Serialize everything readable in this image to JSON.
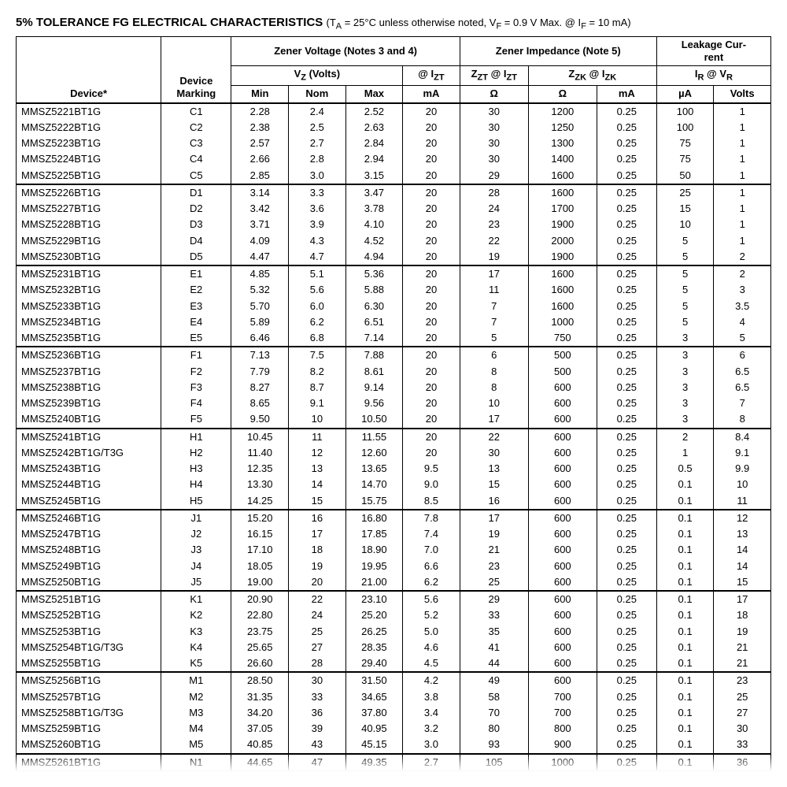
{
  "title_main": "5% TOLERANCE FG ELECTRICAL CHARACTERISTICS",
  "title_cond": "(Tᴀ = 25°C unless otherwise noted, Vᴝ = 0.9 V Max. @ Iᴝ = 10 mA)",
  "headers": {
    "device": "Device*",
    "marking": "Device Marking",
    "zener_voltage": "Zener Voltage",
    "zener_voltage_notes": " (Notes 3 and 4)",
    "zener_impedance": "Zener Impedance",
    "zener_impedance_notes": " (Note 5)",
    "leakage": "Leakage Cur-rent",
    "vz": "V",
    "vz_sub": "Z",
    "vz_unit": " (Volts)",
    "at_izt": "@ I",
    "at_izt_sub": "ZT",
    "zzt": "Z",
    "zzt_sub": "ZT",
    "zzt_at": " @ I",
    "zzt_at_sub": "ZT",
    "zzk": "Z",
    "zzk_sub": "ZK",
    "zzk_at": " @ I",
    "zzk_at_sub": "ZK",
    "ir": "I",
    "ir_sub": "R",
    "ir_at": " @ V",
    "ir_at_sub": "R",
    "min": "Min",
    "nom": "Nom",
    "max": "Max",
    "ma": "mA",
    "ohm": "Ω",
    "ua": "µA",
    "volts": "Volts"
  },
  "groups": [
    [
      [
        "MMSZ5221BT1G",
        "C1",
        "2.28",
        "2.4",
        "2.52",
        "20",
        "30",
        "1200",
        "0.25",
        "100",
        "1"
      ],
      [
        "MMSZ5222BT1G",
        "C2",
        "2.38",
        "2.5",
        "2.63",
        "20",
        "30",
        "1250",
        "0.25",
        "100",
        "1"
      ],
      [
        "MMSZ5223BT1G",
        "C3",
        "2.57",
        "2.7",
        "2.84",
        "20",
        "30",
        "1300",
        "0.25",
        "75",
        "1"
      ],
      [
        "MMSZ5224BT1G",
        "C4",
        "2.66",
        "2.8",
        "2.94",
        "20",
        "30",
        "1400",
        "0.25",
        "75",
        "1"
      ],
      [
        "MMSZ5225BT1G",
        "C5",
        "2.85",
        "3.0",
        "3.15",
        "20",
        "29",
        "1600",
        "0.25",
        "50",
        "1"
      ]
    ],
    [
      [
        "MMSZ5226BT1G",
        "D1",
        "3.14",
        "3.3",
        "3.47",
        "20",
        "28",
        "1600",
        "0.25",
        "25",
        "1"
      ],
      [
        "MMSZ5227BT1G",
        "D2",
        "3.42",
        "3.6",
        "3.78",
        "20",
        "24",
        "1700",
        "0.25",
        "15",
        "1"
      ],
      [
        "MMSZ5228BT1G",
        "D3",
        "3.71",
        "3.9",
        "4.10",
        "20",
        "23",
        "1900",
        "0.25",
        "10",
        "1"
      ],
      [
        "MMSZ5229BT1G",
        "D4",
        "4.09",
        "4.3",
        "4.52",
        "20",
        "22",
        "2000",
        "0.25",
        "5",
        "1"
      ],
      [
        "MMSZ5230BT1G",
        "D5",
        "4.47",
        "4.7",
        "4.94",
        "20",
        "19",
        "1900",
        "0.25",
        "5",
        "2"
      ]
    ],
    [
      [
        "MMSZ5231BT1G",
        "E1",
        "4.85",
        "5.1",
        "5.36",
        "20",
        "17",
        "1600",
        "0.25",
        "5",
        "2"
      ],
      [
        "MMSZ5232BT1G",
        "E2",
        "5.32",
        "5.6",
        "5.88",
        "20",
        "11",
        "1600",
        "0.25",
        "5",
        "3"
      ],
      [
        "MMSZ5233BT1G",
        "E3",
        "5.70",
        "6.0",
        "6.30",
        "20",
        "7",
        "1600",
        "0.25",
        "5",
        "3.5"
      ],
      [
        "MMSZ5234BT1G",
        "E4",
        "5.89",
        "6.2",
        "6.51",
        "20",
        "7",
        "1000",
        "0.25",
        "5",
        "4"
      ],
      [
        "MMSZ5235BT1G",
        "E5",
        "6.46",
        "6.8",
        "7.14",
        "20",
        "5",
        "750",
        "0.25",
        "3",
        "5"
      ]
    ],
    [
      [
        "MMSZ5236BT1G",
        "F1",
        "7.13",
        "7.5",
        "7.88",
        "20",
        "6",
        "500",
        "0.25",
        "3",
        "6"
      ],
      [
        "MMSZ5237BT1G",
        "F2",
        "7.79",
        "8.2",
        "8.61",
        "20",
        "8",
        "500",
        "0.25",
        "3",
        "6.5"
      ],
      [
        "MMSZ5238BT1G",
        "F3",
        "8.27",
        "8.7",
        "9.14",
        "20",
        "8",
        "600",
        "0.25",
        "3",
        "6.5"
      ],
      [
        "MMSZ5239BT1G",
        "F4",
        "8.65",
        "9.1",
        "9.56",
        "20",
        "10",
        "600",
        "0.25",
        "3",
        "7"
      ],
      [
        "MMSZ5240BT1G",
        "F5",
        "9.50",
        "10",
        "10.50",
        "20",
        "17",
        "600",
        "0.25",
        "3",
        "8"
      ]
    ],
    [
      [
        "MMSZ5241BT1G",
        "H1",
        "10.45",
        "11",
        "11.55",
        "20",
        "22",
        "600",
        "0.25",
        "2",
        "8.4"
      ],
      [
        "MMSZ5242BT1G/T3G",
        "H2",
        "11.40",
        "12",
        "12.60",
        "20",
        "30",
        "600",
        "0.25",
        "1",
        "9.1"
      ],
      [
        "MMSZ5243BT1G",
        "H3",
        "12.35",
        "13",
        "13.65",
        "9.5",
        "13",
        "600",
        "0.25",
        "0.5",
        "9.9"
      ],
      [
        "MMSZ5244BT1G",
        "H4",
        "13.30",
        "14",
        "14.70",
        "9.0",
        "15",
        "600",
        "0.25",
        "0.1",
        "10"
      ],
      [
        "MMSZ5245BT1G",
        "H5",
        "14.25",
        "15",
        "15.75",
        "8.5",
        "16",
        "600",
        "0.25",
        "0.1",
        "11"
      ]
    ],
    [
      [
        "MMSZ5246BT1G",
        "J1",
        "15.20",
        "16",
        "16.80",
        "7.8",
        "17",
        "600",
        "0.25",
        "0.1",
        "12"
      ],
      [
        "MMSZ5247BT1G",
        "J2",
        "16.15",
        "17",
        "17.85",
        "7.4",
        "19",
        "600",
        "0.25",
        "0.1",
        "13"
      ],
      [
        "MMSZ5248BT1G",
        "J3",
        "17.10",
        "18",
        "18.90",
        "7.0",
        "21",
        "600",
        "0.25",
        "0.1",
        "14"
      ],
      [
        "MMSZ5249BT1G",
        "J4",
        "18.05",
        "19",
        "19.95",
        "6.6",
        "23",
        "600",
        "0.25",
        "0.1",
        "14"
      ],
      [
        "MMSZ5250BT1G",
        "J5",
        "19.00",
        "20",
        "21.00",
        "6.2",
        "25",
        "600",
        "0.25",
        "0.1",
        "15"
      ]
    ],
    [
      [
        "MMSZ5251BT1G",
        "K1",
        "20.90",
        "22",
        "23.10",
        "5.6",
        "29",
        "600",
        "0.25",
        "0.1",
        "17"
      ],
      [
        "MMSZ5252BT1G",
        "K2",
        "22.80",
        "24",
        "25.20",
        "5.2",
        "33",
        "600",
        "0.25",
        "0.1",
        "18"
      ],
      [
        "MMSZ5253BT1G",
        "K3",
        "23.75",
        "25",
        "26.25",
        "5.0",
        "35",
        "600",
        "0.25",
        "0.1",
        "19"
      ],
      [
        "MMSZ5254BT1G/T3G",
        "K4",
        "25.65",
        "27",
        "28.35",
        "4.6",
        "41",
        "600",
        "0.25",
        "0.1",
        "21"
      ],
      [
        "MMSZ5255BT1G",
        "K5",
        "26.60",
        "28",
        "29.40",
        "4.5",
        "44",
        "600",
        "0.25",
        "0.1",
        "21"
      ]
    ],
    [
      [
        "MMSZ5256BT1G",
        "M1",
        "28.50",
        "30",
        "31.50",
        "4.2",
        "49",
        "600",
        "0.25",
        "0.1",
        "23"
      ],
      [
        "MMSZ5257BT1G",
        "M2",
        "31.35",
        "33",
        "34.65",
        "3.8",
        "58",
        "700",
        "0.25",
        "0.1",
        "25"
      ],
      [
        "MMSZ5258BT1G/T3G",
        "M3",
        "34.20",
        "36",
        "37.80",
        "3.4",
        "70",
        "700",
        "0.25",
        "0.1",
        "27"
      ],
      [
        "MMSZ5259BT1G",
        "M4",
        "37.05",
        "39",
        "40.95",
        "3.2",
        "80",
        "800",
        "0.25",
        "0.1",
        "30"
      ],
      [
        "MMSZ5260BT1G",
        "M5",
        "40.85",
        "43",
        "45.15",
        "3.0",
        "93",
        "900",
        "0.25",
        "0.1",
        "33"
      ]
    ],
    [
      [
        "MMSZ5261BT1G",
        "N1",
        "44.65",
        "47",
        "49.35",
        "2.7",
        "105",
        "1000",
        "0.25",
        "0.1",
        "36"
      ]
    ]
  ]
}
